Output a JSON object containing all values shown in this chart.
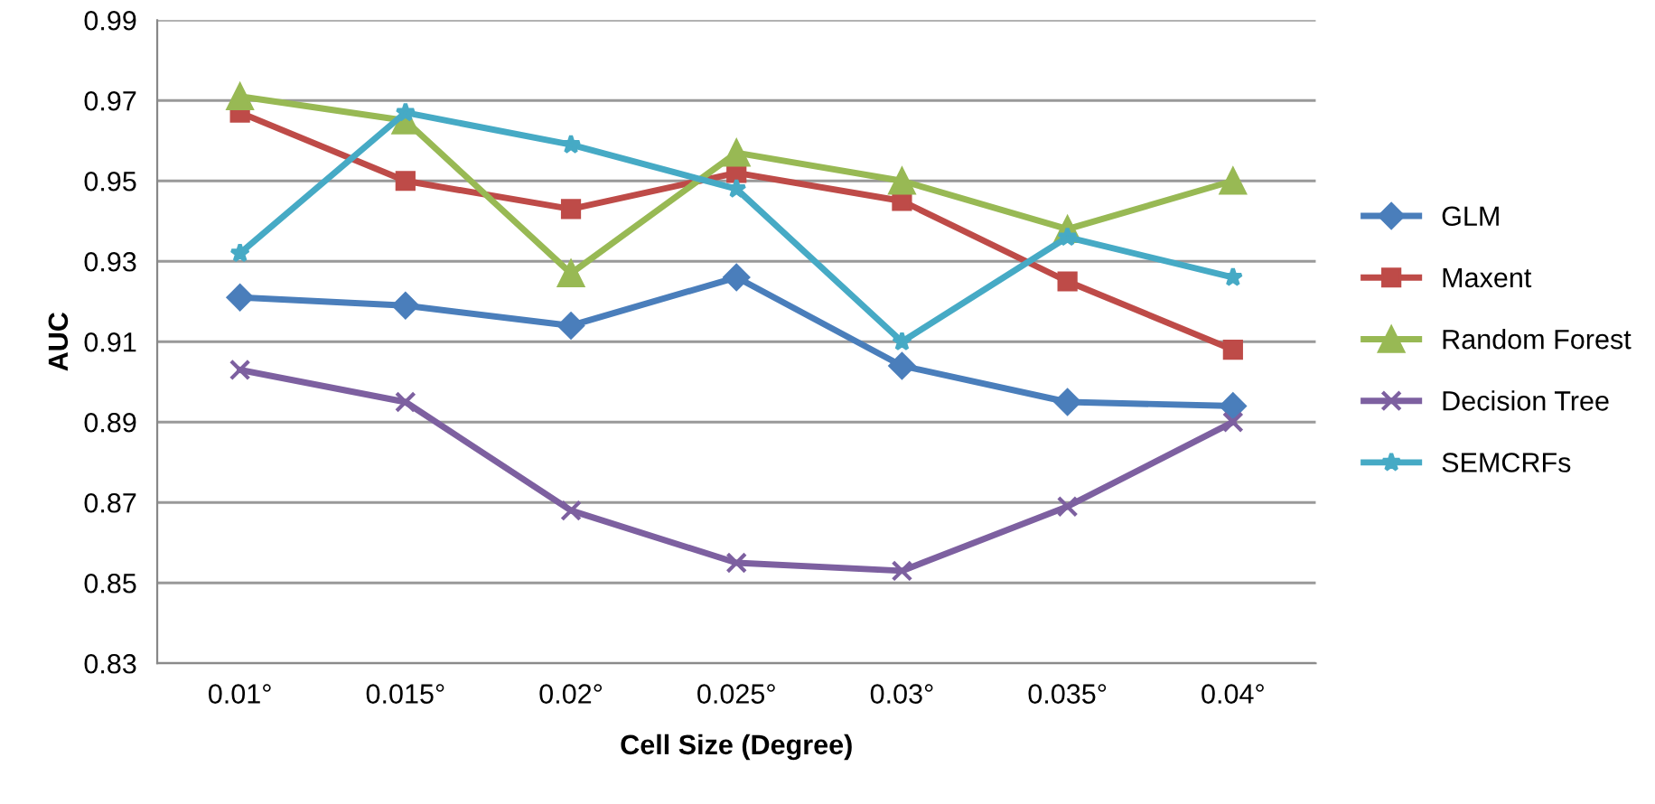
{
  "chart_data": {
    "type": "line",
    "xlabel": "Cell Size (Degree)",
    "ylabel": "AUC",
    "categories": [
      "0.01°",
      "0.015°",
      "0.02°",
      "0.025°",
      "0.03°",
      "0.035°",
      "0.04°"
    ],
    "ylim": [
      0.83,
      0.99
    ],
    "yticks": [
      0.83,
      0.85,
      0.87,
      0.89,
      0.91,
      0.93,
      0.95,
      0.97,
      0.99
    ],
    "grid": "y",
    "legend": "right",
    "series": [
      {
        "name": "GLM",
        "color": "#4a7ebb",
        "marker": "diamond",
        "values": [
          0.921,
          0.919,
          0.914,
          0.926,
          0.904,
          0.895,
          0.894
        ]
      },
      {
        "name": "Maxent",
        "color": "#be4b48",
        "marker": "square",
        "values": [
          0.967,
          0.95,
          0.943,
          0.952,
          0.945,
          0.925,
          0.908
        ]
      },
      {
        "name": "Random Forest",
        "color": "#98b954",
        "marker": "triangle",
        "values": [
          0.971,
          0.965,
          0.927,
          0.957,
          0.95,
          0.938,
          0.95
        ]
      },
      {
        "name": "Decision Tree",
        "color": "#7d60a0",
        "marker": "cross",
        "values": [
          0.903,
          0.895,
          0.868,
          0.855,
          0.853,
          0.869,
          0.89
        ]
      },
      {
        "name": "SEMCRFs",
        "color": "#46aac5",
        "marker": "star",
        "values": [
          0.932,
          0.967,
          0.959,
          0.948,
          0.91,
          0.936,
          0.926
        ]
      }
    ]
  }
}
